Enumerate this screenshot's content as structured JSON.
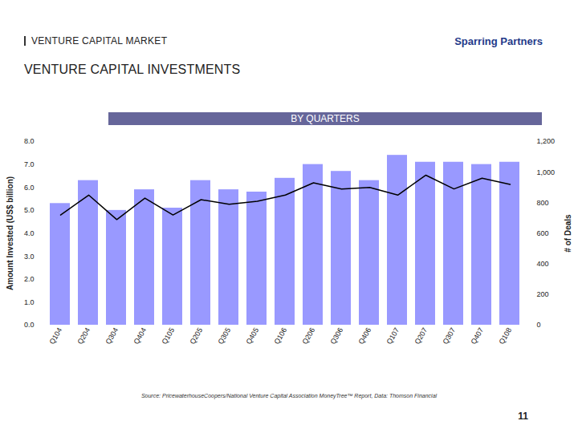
{
  "header": {
    "section": "VENTURE CAPITAL MARKET",
    "brand": "Sparring Partners",
    "title": "VENTURE CAPITAL INVESTMENTS"
  },
  "chart_data": {
    "type": "bar",
    "title": "BY QUARTERS",
    "categories": [
      "Q104",
      "Q204",
      "Q304",
      "Q404",
      "Q105",
      "Q205",
      "Q305",
      "Q405",
      "Q106",
      "Q206",
      "Q306",
      "Q406",
      "Q107",
      "Q207",
      "Q307",
      "Q407",
      "Q108"
    ],
    "series": [
      {
        "type": "bar",
        "color": "#9999ff",
        "values": [
          5.3,
          6.3,
          5.0,
          5.9,
          5.1,
          6.3,
          5.9,
          5.8,
          6.4,
          7.0,
          6.7,
          6.3,
          7.4,
          7.1,
          7.1,
          7.0,
          7.1
        ]
      },
      {
        "type": "line",
        "axis": "y2",
        "color": "#000000",
        "marker": "none",
        "line_style": "solid",
        "values": [
          720,
          850,
          690,
          830,
          720,
          820,
          790,
          810,
          850,
          930,
          890,
          900,
          850,
          980,
          890,
          960,
          920
        ]
      }
    ],
    "ylabel": "Amount Invested (US$ billion)",
    "y2label": "# of Deals",
    "ylim": [
      0,
      8
    ],
    "yticks": [
      {
        "value": 0,
        "label": "0.0"
      },
      {
        "value": 1,
        "label": "1.0"
      },
      {
        "value": 2,
        "label": "2.0"
      },
      {
        "value": 3,
        "label": "3.0"
      },
      {
        "value": 4,
        "label": "4.0"
      },
      {
        "value": 5,
        "label": "5.0"
      },
      {
        "value": 6,
        "label": "6.0"
      },
      {
        "value": 7,
        "label": "7.0"
      },
      {
        "value": 8,
        "label": "8.0"
      }
    ],
    "y2lim": [
      0,
      1200
    ],
    "y2ticks": [
      0,
      200,
      400,
      600,
      800,
      {
        "value": 1000,
        "label": "1,000"
      },
      {
        "value": 1200,
        "label": "1,200"
      }
    ],
    "grid": false,
    "data_labels": false
  },
  "source": "Source: PricewaterhouseCoopers/National Venture Capital Association MoneyTree™ Report, Data: Thomson Financial",
  "page_number": 11
}
